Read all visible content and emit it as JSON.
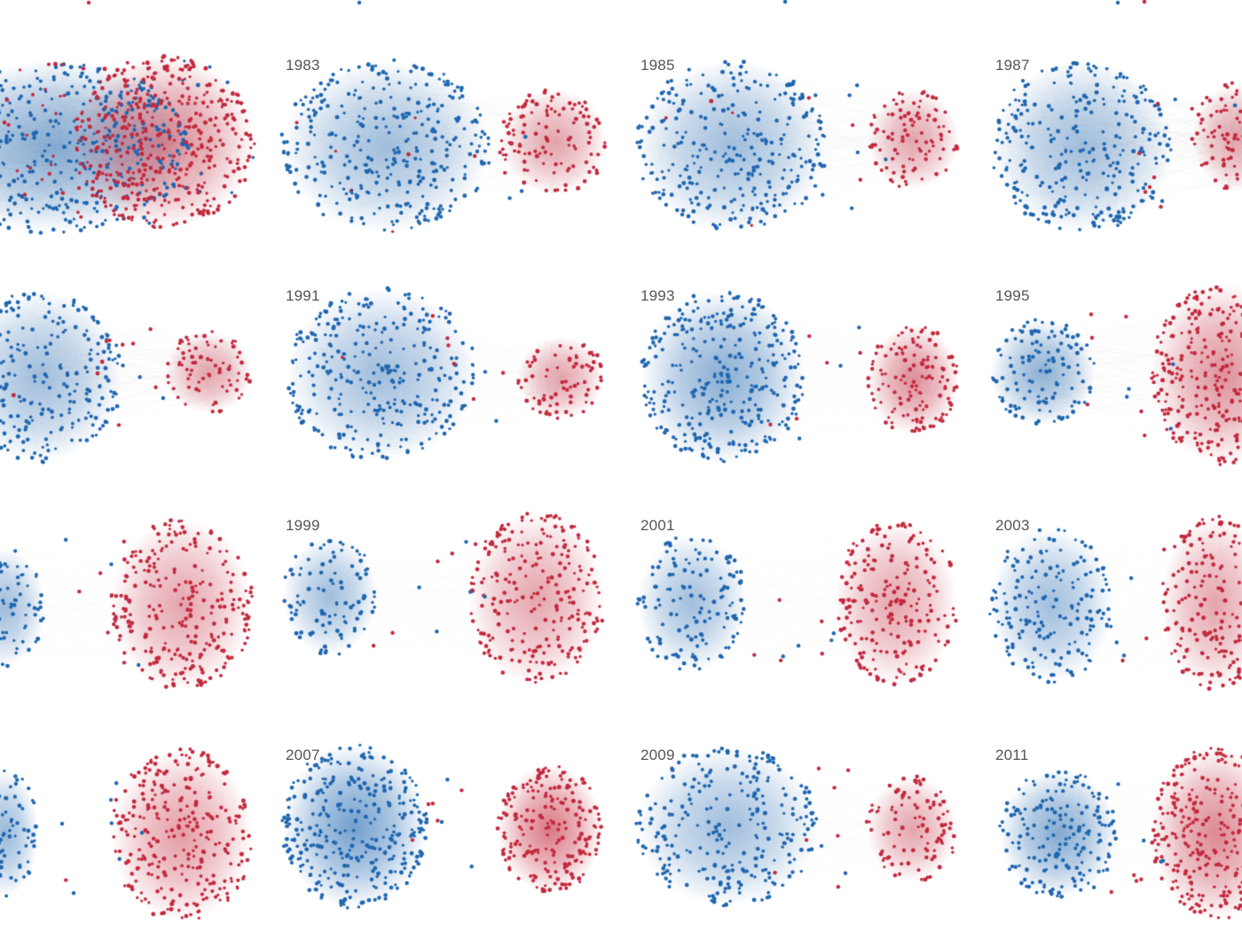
{
  "colors": {
    "democrat": "#1f66b0",
    "republican": "#c4293d",
    "edge": "#9a9a9a",
    "label": "#555555",
    "background": "#ffffff"
  },
  "panels": [
    {
      "id": "p1981",
      "year": "",
      "has_label": false
    },
    {
      "id": "p1983",
      "year": "1983",
      "has_label": true
    },
    {
      "id": "p1985",
      "year": "1985",
      "has_label": true
    },
    {
      "id": "p1987",
      "year": "1987",
      "has_label": true
    },
    {
      "id": "p1989",
      "year": "",
      "has_label": false
    },
    {
      "id": "p1991",
      "year": "1991",
      "has_label": true
    },
    {
      "id": "p1993",
      "year": "1993",
      "has_label": true
    },
    {
      "id": "p1995",
      "year": "1995",
      "has_label": true
    },
    {
      "id": "p1997",
      "year": "",
      "has_label": false
    },
    {
      "id": "p1999",
      "year": "1999",
      "has_label": true
    },
    {
      "id": "p2001",
      "year": "2001",
      "has_label": true
    },
    {
      "id": "p2003",
      "year": "2003",
      "has_label": true
    },
    {
      "id": "p2005",
      "year": "",
      "has_label": false
    },
    {
      "id": "p2007",
      "year": "2007",
      "has_label": true
    },
    {
      "id": "p2009",
      "year": "2009",
      "has_label": true
    },
    {
      "id": "p2011",
      "year": "2011",
      "has_label": true
    }
  ]
}
